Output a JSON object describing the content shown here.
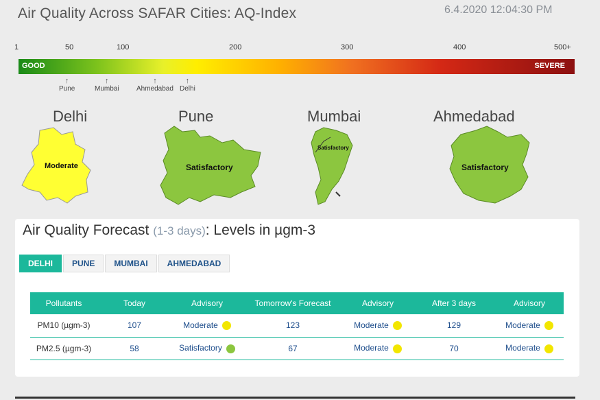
{
  "header": {
    "title": "Air Quality Across SAFAR Cities: AQ-Index",
    "timestamp": "6.4.2020 12:04:30 PM"
  },
  "scale": {
    "ticks": [
      "1",
      "50",
      "100",
      "200",
      "300",
      "400",
      "500+"
    ],
    "good_label": "GOOD",
    "severe_label": "SEVERE",
    "markers": [
      "Pune",
      "Mumbai",
      "Ahmedabad",
      "Delhi"
    ]
  },
  "cities": [
    {
      "name": "Delhi",
      "status": "Moderate",
      "color": "#ffff33"
    },
    {
      "name": "Pune",
      "status": "Satisfactory",
      "color": "#8cc63f"
    },
    {
      "name": "Mumbai",
      "status": "Satisfactory",
      "color": "#8cc63f"
    },
    {
      "name": "Ahmedabad",
      "status": "Satisfactory",
      "color": "#8cc63f"
    }
  ],
  "forecast": {
    "title": "Air Quality Forecast ",
    "subtitle": "(1-3 days)",
    "title_suffix": ": Levels in µgm-3",
    "tabs": [
      "DELHI",
      "PUNE",
      "MUMBAI",
      "AHMEDABAD"
    ],
    "active_tab": "DELHI",
    "columns": [
      "Pollutants",
      "Today",
      "Advisory",
      "Tomorrow's Forecast",
      "Advisory",
      "After 3 days",
      "Advisory"
    ],
    "rows": [
      {
        "pollutant": "PM10 (µgm-3)",
        "today": "107",
        "adv1": "Moderate",
        "adv1_color": "#f2e600",
        "tomorrow": "123",
        "adv2": "Moderate",
        "adv2_color": "#f2e600",
        "after3": "129",
        "adv3": "Moderate",
        "adv3_color": "#f2e600"
      },
      {
        "pollutant": "PM2.5 (µgm-3)",
        "today": "58",
        "adv1": "Satisfactory",
        "adv1_color": "#8cc63f",
        "tomorrow": "67",
        "adv2": "Moderate",
        "adv2_color": "#f2e600",
        "after3": "70",
        "adv3": "Moderate",
        "adv3_color": "#f2e600"
      }
    ]
  }
}
